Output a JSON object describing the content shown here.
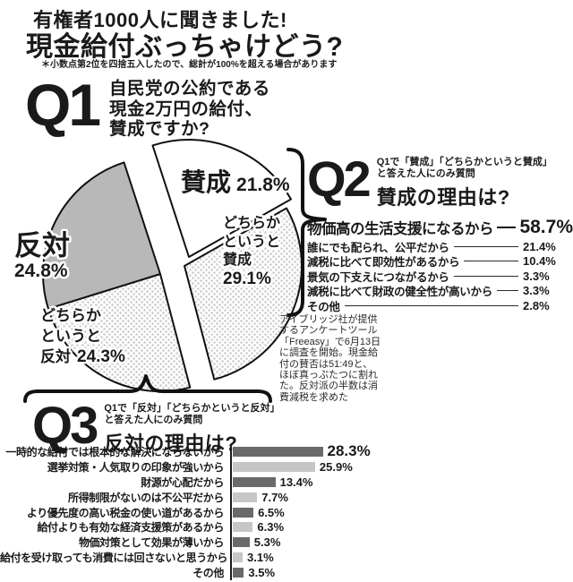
{
  "colors": {
    "text": "#1a1a1a",
    "pie_gray": "#b8b8b8",
    "pie_dot": "#c9c9c9",
    "bar_dark": "#6a6a6a",
    "bar_light": "#c6c6c6"
  },
  "header": {
    "title_line1": "有権者1000人に聞きました!",
    "title_line2": "現金給付ぶっちゃけどう?",
    "footnote": "＊小数点第2位を四捨五入したので、総計が100%を超える場合があります"
  },
  "q1": {
    "badge": "Q1",
    "question_lines": [
      "自民党の公約である",
      "現金2万円の給付、",
      "賛成ですか?"
    ]
  },
  "q2": {
    "badge": "Q2",
    "condition_line1": "Q1で「賛成」「どちらかというと賛成」",
    "condition_line2": "と答えた人にのみ質問",
    "question": "賛成の理由は?"
  },
  "q3": {
    "badge": "Q3",
    "condition_line1": "Q1で「反対」「どちらかというと反対」",
    "condition_line2": "と答えた人にのみ質問",
    "question": "反対の理由は?"
  },
  "survey_note": "アイブリッジ社が提供\nするアンケートツール\n「Freeasy」で6月13日\nに調査を開始。現金給\n付の賛否は51:49と、\nほぼ真っぷたつに割れ\nた。反対派の半数は消\n費減税を求めた",
  "chart_data": [
    {
      "type": "pie",
      "title": "Q1 自民党の公約である現金2万円の給付、賛成ですか?",
      "slices": [
        {
          "label": "賛成",
          "value": 21.8,
          "pct": "21.8%",
          "display": [
            "賛成"
          ],
          "fill": "white"
        },
        {
          "label": "どちらかというと賛成",
          "value": 29.1,
          "pct": "29.1%",
          "display": [
            "どちらか",
            "というと",
            "賛成"
          ],
          "fill": "dots"
        },
        {
          "label": "どちらかというと反対",
          "value": 24.3,
          "pct": "24.3%",
          "display": [
            "どちらか",
            "というと",
            "反対"
          ],
          "fill": "dots"
        },
        {
          "label": "反対",
          "value": 24.8,
          "pct": "24.8%",
          "display": [
            "反対"
          ],
          "fill": "gray"
        }
      ]
    },
    {
      "type": "bar",
      "title": "Q2 賛成の理由は?",
      "categories": [
        "物価高の生活支援になるから",
        "誰にでも配られ、公平だから",
        "減税に比べて即効性があるから",
        "景気の下支えにつながるから",
        "減税に比べて財政の健全性が高いから",
        "その他"
      ],
      "values": [
        58.7,
        21.4,
        10.4,
        3.3,
        3.3,
        2.8
      ],
      "value_labels": [
        "58.7%",
        "21.4%",
        "10.4%",
        "3.3%",
        "3.3%",
        "2.8%"
      ],
      "xlim": [
        0,
        60
      ],
      "legend": "none",
      "grid": false
    },
    {
      "type": "bar",
      "title": "Q3 反対の理由は?",
      "categories": [
        "一時的な給付では根本的な解決にならないから",
        "選挙対策・人気取りの印象が強いから",
        "財源が心配だから",
        "所得制限がないのは不公平だから",
        "より優先度の高い税金の使い道があるから",
        "給付よりも有効な経済支援策があるから",
        "物価対策として効果が薄いから",
        "給付を受け取っても消費には回さないと思うから",
        "その他"
      ],
      "values": [
        28.3,
        25.9,
        13.4,
        7.7,
        6.5,
        6.3,
        5.3,
        3.1,
        3.5
      ],
      "value_labels": [
        "28.3%",
        "25.9%",
        "13.4%",
        "7.7%",
        "6.5%",
        "6.3%",
        "5.3%",
        "3.1%",
        "3.5%"
      ],
      "tones": [
        "dark",
        "light",
        "dark",
        "light",
        "dark",
        "light",
        "dark",
        "light",
        "dark"
      ],
      "xlim": [
        0,
        30
      ],
      "legend": "none",
      "grid": false
    }
  ]
}
